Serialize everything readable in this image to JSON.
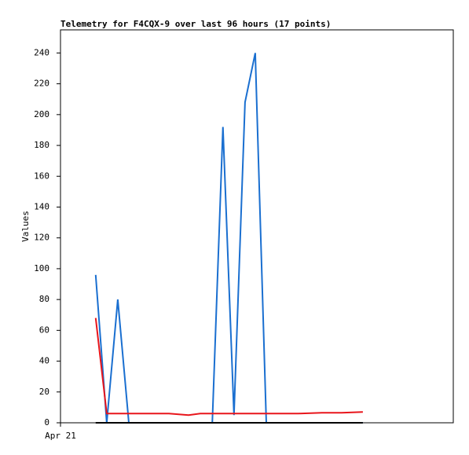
{
  "chart_data": {
    "type": "line",
    "title": "Telemetry for F4CQX-9 over last 96 hours (17 points)",
    "ylabel": "Values",
    "x": [
      8.6,
      11.3,
      14.0,
      16.7,
      26.5,
      31.3,
      34.2,
      37.1,
      39.7,
      42.4,
      45.1,
      47.6,
      50.3,
      58.2,
      63.9,
      68.7,
      73.9
    ],
    "xlim": [
      0,
      96
    ],
    "xticks": [
      {
        "value": 0,
        "label": "Apr 21"
      }
    ],
    "ylim": [
      0,
      255
    ],
    "yticks": [
      0,
      20,
      40,
      60,
      80,
      100,
      120,
      140,
      160,
      180,
      200,
      220,
      240
    ],
    "series": [
      {
        "color": "#1a6fd0",
        "values": [
          96,
          0,
          80,
          0,
          0,
          0,
          0,
          0,
          192,
          5,
          208,
          240,
          0,
          0,
          0,
          0,
          0
        ]
      },
      {
        "color": "#e8151b",
        "values": [
          68,
          6,
          6,
          6,
          6,
          5,
          6,
          6,
          6,
          6,
          6,
          6,
          6,
          6,
          6.5,
          6.5,
          7
        ]
      },
      {
        "color": "#000000",
        "values": [
          0,
          0,
          0,
          0,
          0,
          0,
          0,
          0,
          0,
          0,
          0,
          0,
          0,
          0,
          0,
          0,
          0
        ]
      }
    ]
  }
}
